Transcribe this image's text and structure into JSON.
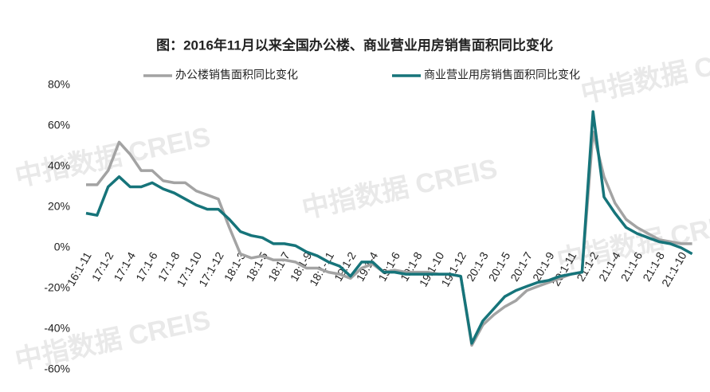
{
  "chart_data": {
    "type": "line",
    "title": "图：2016年11月以来全国办公楼、商业营业用房销售面积同比变化",
    "watermark": "中指数据 CREIS",
    "categories": [
      "16:1-11",
      null,
      "17:1-2",
      null,
      "17:1-4",
      null,
      "17:1-6",
      null,
      "17:1-8",
      null,
      "17:1-10",
      null,
      "17:1-12",
      null,
      "18:1-3",
      null,
      "18:1-5",
      null,
      "18:1-7",
      null,
      "18:1-9",
      null,
      "18:1-11",
      null,
      "19:1-2",
      null,
      "19:1-4",
      null,
      "19:1-6",
      null,
      "19:1-8",
      null,
      "19:1-10",
      null,
      "19:1-12",
      null,
      "20:1-3",
      null,
      "20:1-5",
      null,
      "20:1-7",
      null,
      "20:1-9",
      null,
      "20:1-11",
      null,
      "21:1-2",
      null,
      "21:1-4",
      null,
      "21:1-6",
      null,
      "21:1-8",
      null,
      "21:1-10",
      null
    ],
    "series": [
      {
        "name": "办公楼销售面积同比变化",
        "color": "#a3a3a3",
        "values": [
          31,
          31,
          38,
          52,
          46,
          38,
          38,
          33,
          32,
          32,
          28,
          26,
          24,
          10,
          -3,
          -5,
          -4,
          -6,
          -6,
          -7,
          -10,
          -10,
          -12,
          -13,
          -15,
          -10,
          -8,
          -12,
          -11,
          -12,
          -12,
          -12,
          -13,
          -13,
          -14,
          -48,
          -38,
          -33,
          -29,
          -26,
          -21,
          -19,
          -17,
          -15,
          -13,
          -12,
          57,
          35,
          22,
          14,
          10,
          7,
          4,
          3,
          2,
          2
        ]
      },
      {
        "name": "商业营业用房销售面积同比变化",
        "color": "#16747a",
        "values": [
          17,
          16,
          30,
          35,
          30,
          30,
          32,
          29,
          27,
          24,
          21,
          19,
          19,
          14,
          8,
          6,
          5,
          2,
          2,
          1,
          -2,
          -4,
          -7,
          -9,
          -14,
          -7,
          -7,
          -12,
          -12,
          -13,
          -13,
          -13,
          -13,
          -13,
          -14,
          -47,
          -36,
          -30,
          -24,
          -21,
          -19,
          -17,
          -16,
          -14,
          -13,
          -12,
          67,
          25,
          17,
          10,
          7,
          5,
          3,
          2,
          0,
          -3
        ]
      }
    ],
    "ylim": [
      -60,
      80
    ],
    "yticks": [
      {
        "value": -60,
        "label": "-60%"
      },
      {
        "value": -40,
        "label": "-40%"
      },
      {
        "value": -20,
        "label": "-20%"
      },
      {
        "value": 0,
        "label": "0%"
      },
      {
        "value": 20,
        "label": "20%"
      },
      {
        "value": 40,
        "label": "40%"
      },
      {
        "value": 60,
        "label": "60%"
      },
      {
        "value": 80,
        "label": "80%"
      }
    ],
    "grid": false
  }
}
